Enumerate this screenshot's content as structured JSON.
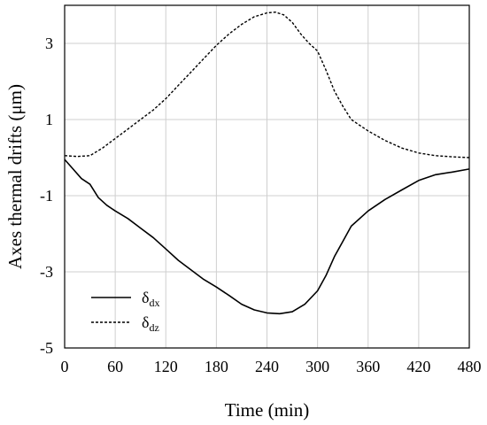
{
  "chart_data": {
    "type": "line",
    "title": "",
    "xlabel": "Time (min)",
    "ylabel": "Axes thermal drifts (μm)",
    "xlim": [
      0,
      480
    ],
    "ylim": [
      -5,
      4
    ],
    "xticks": [
      0,
      60,
      120,
      180,
      240,
      300,
      360,
      420,
      480
    ],
    "yticks": [
      -5,
      -3,
      -1,
      1,
      3
    ],
    "grid": true,
    "legend_position": "bottom-left",
    "series": [
      {
        "name": "δdx",
        "name_main": "δ",
        "name_sub": "dx",
        "style": "solid",
        "x": [
          0,
          10,
          20,
          30,
          40,
          50,
          60,
          75,
          90,
          105,
          120,
          135,
          150,
          165,
          180,
          195,
          210,
          225,
          240,
          255,
          270,
          285,
          300,
          310,
          320,
          330,
          340,
          360,
          380,
          400,
          420,
          440,
          460,
          480
        ],
        "y": [
          -0.05,
          -0.3,
          -0.55,
          -0.7,
          -1.05,
          -1.25,
          -1.4,
          -1.6,
          -1.85,
          -2.1,
          -2.4,
          -2.7,
          -2.95,
          -3.2,
          -3.4,
          -3.62,
          -3.85,
          -4.0,
          -4.08,
          -4.1,
          -4.05,
          -3.85,
          -3.5,
          -3.1,
          -2.6,
          -2.2,
          -1.8,
          -1.4,
          -1.1,
          -0.85,
          -0.6,
          -0.45,
          -0.38,
          -0.3
        ]
      },
      {
        "name": "δdz",
        "name_main": "δ",
        "name_sub": "dz",
        "style": "dashed",
        "x": [
          0,
          15,
          30,
          45,
          60,
          75,
          90,
          105,
          120,
          135,
          150,
          165,
          180,
          195,
          210,
          225,
          240,
          250,
          260,
          270,
          280,
          290,
          300,
          310,
          320,
          330,
          340,
          350,
          360,
          380,
          400,
          420,
          440,
          460,
          480
        ],
        "y": [
          0.05,
          0.03,
          0.05,
          0.25,
          0.5,
          0.75,
          1.0,
          1.25,
          1.55,
          1.9,
          2.25,
          2.6,
          2.95,
          3.25,
          3.5,
          3.7,
          3.8,
          3.82,
          3.75,
          3.55,
          3.25,
          3.0,
          2.8,
          2.3,
          1.75,
          1.35,
          1.0,
          0.85,
          0.7,
          0.45,
          0.25,
          0.12,
          0.05,
          0.02,
          0.0
        ]
      }
    ]
  }
}
